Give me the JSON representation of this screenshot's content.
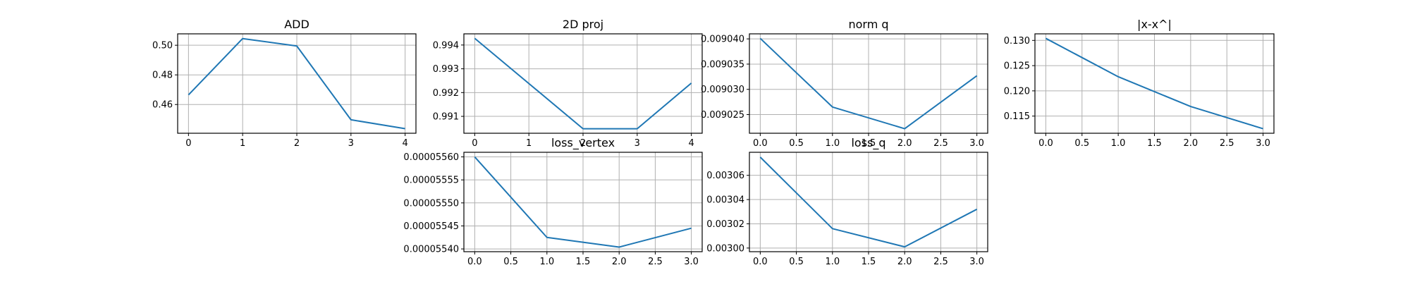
{
  "chart_data": [
    {
      "type": "line",
      "title": "ADD",
      "x": [
        0,
        1,
        2,
        3,
        4
      ],
      "series": [
        {
          "values": [
            0.4665,
            0.5045,
            0.4995,
            0.4497,
            0.4437
          ],
          "color": "#1f77b4"
        }
      ],
      "xticks": [
        0,
        1,
        2,
        3,
        4
      ],
      "xtick_labels": [
        "0",
        "1",
        "2",
        "3",
        "4"
      ],
      "yticks": [
        0.46,
        0.48,
        0.5
      ],
      "ytick_labels": [
        "0.46",
        "0.48",
        "0.50"
      ],
      "xlim": [
        -0.2,
        4.2
      ],
      "ylim": [
        0.4406,
        0.5077
      ],
      "grid": true
    },
    {
      "type": "line",
      "title": "2D proj",
      "x": [
        0,
        1,
        2,
        3,
        4
      ],
      "series": [
        {
          "values": [
            0.99428,
            0.99238,
            0.99048,
            0.99048,
            0.9924
          ],
          "color": "#1f77b4"
        }
      ],
      "xticks": [
        0,
        1,
        2,
        3,
        4
      ],
      "xtick_labels": [
        "0",
        "1",
        "2",
        "3",
        "4"
      ],
      "yticks": [
        0.991,
        0.992,
        0.993,
        0.994
      ],
      "ytick_labels": [
        "0.991",
        "0.992",
        "0.993",
        "0.994"
      ],
      "xlim": [
        -0.2,
        4.2
      ],
      "ylim": [
        0.99029,
        0.99447
      ],
      "grid": true
    },
    {
      "type": "line",
      "title": "norm q",
      "x": [
        0,
        1,
        2,
        3
      ],
      "series": [
        {
          "values": [
            0.0090401,
            0.0090265,
            0.0090222,
            0.0090327
          ],
          "color": "#1f77b4"
        }
      ],
      "xticks": [
        0,
        0.5,
        1,
        1.5,
        2,
        2.5,
        3
      ],
      "xtick_labels": [
        "0.0",
        "0.5",
        "1.0",
        "1.5",
        "2.0",
        "2.5",
        "3.0"
      ],
      "yticks": [
        0.009025,
        0.00903,
        0.009035,
        0.00904
      ],
      "ytick_labels": [
        "0.009025",
        "0.009030",
        "0.009035",
        "0.009040"
      ],
      "xlim": [
        -0.15,
        3.15
      ],
      "ylim": [
        0.0090213,
        0.009041
      ],
      "grid": true
    },
    {
      "type": "line",
      "title": "|x-x^|",
      "x": [
        0,
        1,
        2,
        3
      ],
      "series": [
        {
          "values": [
            0.1304,
            0.1228,
            0.1169,
            0.1125
          ],
          "color": "#1f77b4"
        }
      ],
      "xticks": [
        0,
        0.5,
        1,
        1.5,
        2,
        2.5,
        3
      ],
      "xtick_labels": [
        "0.0",
        "0.5",
        "1.0",
        "1.5",
        "2.0",
        "2.5",
        "3.0"
      ],
      "yticks": [
        0.115,
        0.12,
        0.125,
        0.13
      ],
      "ytick_labels": [
        "0.115",
        "0.120",
        "0.125",
        "0.130"
      ],
      "xlim": [
        -0.15,
        3.15
      ],
      "ylim": [
        0.1116,
        0.1313
      ],
      "grid": true
    },
    {
      "type": "line",
      "title": "loss_vertex",
      "x": [
        0,
        1,
        2,
        3
      ],
      "series": [
        {
          "values": [
            5.56e-05,
            5.5425e-05,
            5.5404e-05,
            5.5445e-05
          ],
          "color": "#1f77b4"
        }
      ],
      "xticks": [
        0,
        0.5,
        1,
        1.5,
        2,
        2.5,
        3
      ],
      "xtick_labels": [
        "0.0",
        "0.5",
        "1.0",
        "1.5",
        "2.0",
        "2.5",
        "3.0"
      ],
      "yticks": [
        5.54e-05,
        5.545e-05,
        5.55e-05,
        5.555e-05,
        5.56e-05
      ],
      "ytick_labels": [
        "0.00005540",
        "0.00005545",
        "0.00005550",
        "0.00005555",
        "0.00005560"
      ],
      "xlim": [
        -0.15,
        3.15
      ],
      "ylim": [
        5.5394e-05,
        5.561e-05
      ],
      "grid": true
    },
    {
      "type": "line",
      "title": "loss_q",
      "x": [
        0,
        1,
        2,
        3
      ],
      "series": [
        {
          "values": [
            0.003075,
            0.003016,
            0.003001,
            0.003032
          ],
          "color": "#1f77b4"
        }
      ],
      "xticks": [
        0,
        0.5,
        1,
        1.5,
        2,
        2.5,
        3
      ],
      "xtick_labels": [
        "0.0",
        "0.5",
        "1.0",
        "1.5",
        "2.0",
        "2.5",
        "3.0"
      ],
      "yticks": [
        0.003,
        0.00302,
        0.00304,
        0.00306
      ],
      "ytick_labels": [
        "0.00300",
        "0.00302",
        "0.00304",
        "0.00306"
      ],
      "xlim": [
        -0.15,
        3.15
      ],
      "ylim": [
        0.002997,
        0.003079
      ],
      "grid": true
    }
  ]
}
